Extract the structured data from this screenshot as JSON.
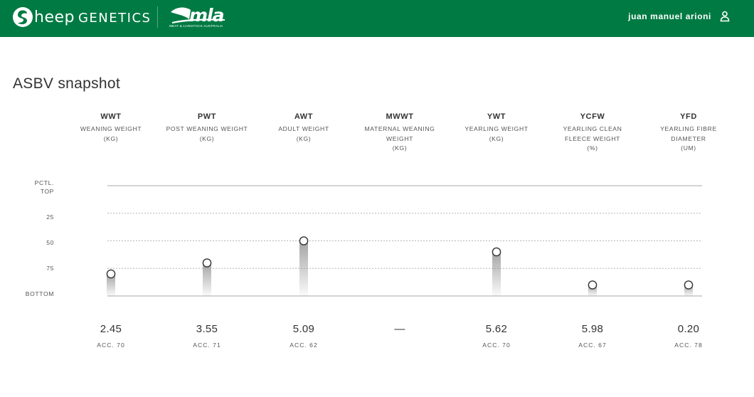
{
  "header": {
    "brand_sheep": "heep",
    "brand_genetics": "GENETICS",
    "mla_logo_text": "mla",
    "mla_logo_subtitle": "MEAT & LIVESTOCK AUSTRALIA",
    "user_name": "juan manuel arioni",
    "colors": {
      "bar": "#007a43",
      "text": "#ffffff"
    }
  },
  "page": {
    "title": "ASBV snapshot"
  },
  "chart_data": {
    "type": "scatter",
    "y_axis": {
      "label_lines": [
        "PCTL.",
        "TOP"
      ],
      "ticks": [
        "25",
        "50",
        "75"
      ],
      "bottom_label": "BOTTOM",
      "scale": "percentile (top = 0, bottom = 100)",
      "range": [
        0,
        100
      ]
    },
    "grid": {
      "solid_top": true,
      "dotted": [
        25,
        50,
        75
      ],
      "solid_bottom": true
    },
    "traits": [
      {
        "code": "WWT",
        "name_lines": [
          "WEANING WEIGHT",
          "(KG)"
        ],
        "value": "2.45",
        "acc": "ACC. 70",
        "percentile": 80
      },
      {
        "code": "PWT",
        "name_lines": [
          "POST WEANING WEIGHT",
          "(KG)"
        ],
        "value": "3.55",
        "acc": "ACC. 71",
        "percentile": 70
      },
      {
        "code": "AWT",
        "name_lines": [
          "ADULT WEIGHT",
          "(KG)"
        ],
        "value": "5.09",
        "acc": "ACC. 62",
        "percentile": 50
      },
      {
        "code": "MWWT",
        "name_lines": [
          "MATERNAL WEANING",
          "WEIGHT",
          "(KG)"
        ],
        "value": "—",
        "acc": "",
        "percentile": null
      },
      {
        "code": "YWT",
        "name_lines": [
          "YEARLING WEIGHT",
          "(KG)"
        ],
        "value": "5.62",
        "acc": "ACC. 70",
        "percentile": 60
      },
      {
        "code": "YCFW",
        "name_lines": [
          "YEARLING CLEAN",
          "FLEECE WEIGHT",
          "(%)"
        ],
        "value": "5.98",
        "acc": "ACC. 67",
        "percentile": 90
      },
      {
        "code": "YFD",
        "name_lines": [
          "YEARLING FIBRE",
          "DIAMETER",
          "(UM)"
        ],
        "value": "0.20",
        "acc": "ACC. 78",
        "percentile": 90
      }
    ]
  }
}
